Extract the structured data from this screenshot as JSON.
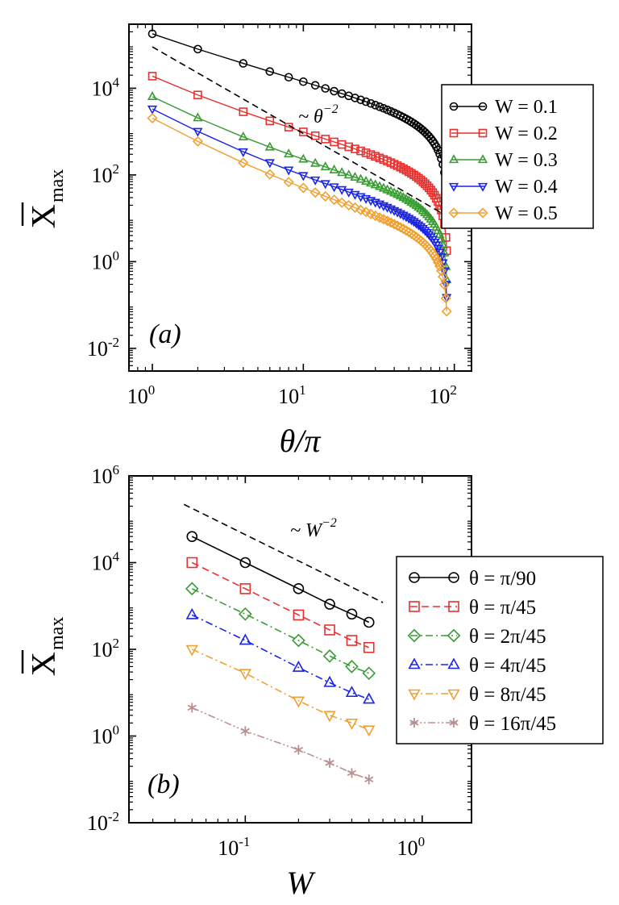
{
  "chart_data": [
    {
      "panel": "a",
      "type": "line",
      "title": "",
      "panel_label": "(a)",
      "xlabel": "θ/π",
      "ylabel": "X",
      "ylabel_sub": "max",
      "xscale": "log",
      "yscale": "log",
      "xlim": [
        0.7,
        130
      ],
      "ylim": [
        0.003,
        300000
      ],
      "xticks": [
        1,
        10,
        100
      ],
      "xtick_labels": [
        {
          "base": "10",
          "exp": "0"
        },
        {
          "base": "10",
          "exp": "1"
        },
        {
          "base": "10",
          "exp": "2"
        }
      ],
      "yticks": [
        0.01,
        1,
        100,
        10000
      ],
      "ytick_labels": [
        {
          "base": "10",
          "exp": "-2"
        },
        {
          "base": "10",
          "exp": "0"
        },
        {
          "base": "10",
          "exp": "2"
        },
        {
          "base": "10",
          "exp": "4"
        }
      ],
      "x": [
        1,
        2,
        4,
        6,
        8,
        10,
        12,
        14,
        16,
        18,
        20,
        22,
        24,
        26,
        28,
        30,
        32,
        34,
        36,
        38,
        40,
        42,
        44,
        46,
        48,
        50,
        52,
        54,
        56,
        58,
        60,
        62,
        64,
        66,
        68,
        70,
        72,
        74,
        76,
        78,
        80,
        82,
        84,
        86,
        88,
        89
      ],
      "series": [
        {
          "name": "W = 0.1",
          "color": "#000000",
          "marker": "circle",
          "A": 40000,
          "B": 3.5,
          "C": 0.0015
        },
        {
          "name": "W = 0.2",
          "color": "#e8312f",
          "marker": "square",
          "A": 10000,
          "B": 0.9,
          "C": 0.004
        },
        {
          "name": "W = 0.3",
          "color": "#3a9b35",
          "marker": "triangle-up",
          "A": 4500,
          "B": 0.42,
          "C": 0.0018
        },
        {
          "name": "W = 0.4",
          "color": "#1a24e6",
          "marker": "triangle-down",
          "A": 2600,
          "B": 0.28,
          "C": 0.0017
        },
        {
          "name": "W = 0.5",
          "color": "#f0a030",
          "marker": "diamond",
          "A": 1700,
          "B": 0.2,
          "C": 0.0011
        }
      ],
      "reference_line": {
        "label": "~ θ",
        "exp": "−2",
        "x": [
          1,
          100
        ],
        "y": [
          90000,
          9
        ],
        "style": "dashed"
      },
      "legend_position": "top-right"
    },
    {
      "panel": "b",
      "type": "line",
      "title": "",
      "panel_label": "(b)",
      "xlabel": "W",
      "ylabel": "X",
      "ylabel_sub": "max",
      "xscale": "log",
      "yscale": "log",
      "xlim": [
        0.022,
        1.9
      ],
      "ylim": [
        0.01,
        1000000
      ],
      "xticks": [
        0.1,
        1
      ],
      "xtick_labels": [
        {
          "base": "10",
          "exp": "-1"
        },
        {
          "base": "10",
          "exp": "0"
        }
      ],
      "yticks": [
        0.01,
        1,
        100,
        10000,
        1000000
      ],
      "ytick_labels": [
        {
          "base": "10",
          "exp": "-2"
        },
        {
          "base": "10",
          "exp": "0"
        },
        {
          "base": "10",
          "exp": "2"
        },
        {
          "base": "10",
          "exp": "4"
        },
        {
          "base": "10",
          "exp": "6"
        }
      ],
      "x": [
        0.05,
        0.1,
        0.2,
        0.3,
        0.4,
        0.5
      ],
      "series": [
        {
          "name": "θ = π/90",
          "color": "#000000",
          "marker": "circle",
          "dash": "solid",
          "values": [
            40000,
            10000,
            2500,
            1100,
            650,
            420
          ]
        },
        {
          "name": "θ = π/45",
          "color": "#e8312f",
          "marker": "square",
          "dash": "dashed",
          "values": [
            10000,
            2500,
            620,
            280,
            160,
            110
          ]
        },
        {
          "name": "θ = 2π/45",
          "color": "#3a9b35",
          "marker": "diamond",
          "dash": "dashdot",
          "values": [
            2500,
            650,
            160,
            70,
            40,
            28
          ]
        },
        {
          "name": "θ = 4π/45",
          "color": "#1a24e6",
          "marker": "triangle-up",
          "dash": "dashdot",
          "values": [
            620,
            160,
            38,
            17,
            10,
            7
          ]
        },
        {
          "name": "θ = 8π/45",
          "color": "#f0a030",
          "marker": "triangle-down",
          "dash": "dashdot",
          "values": [
            100,
            28,
            6.5,
            3,
            2,
            1.4
          ]
        },
        {
          "name": "θ = 16π/45",
          "color": "#b89090",
          "marker": "asterisk",
          "dash": "dashdotdot",
          "values": [
            4.5,
            1.3,
            0.48,
            0.24,
            0.14,
            0.1
          ]
        }
      ],
      "reference_line": {
        "label": "~ W",
        "exp": "−2",
        "x": [
          0.045,
          0.6
        ],
        "y": [
          220000,
          1200
        ],
        "style": "dashed"
      },
      "legend_position": "right"
    }
  ]
}
